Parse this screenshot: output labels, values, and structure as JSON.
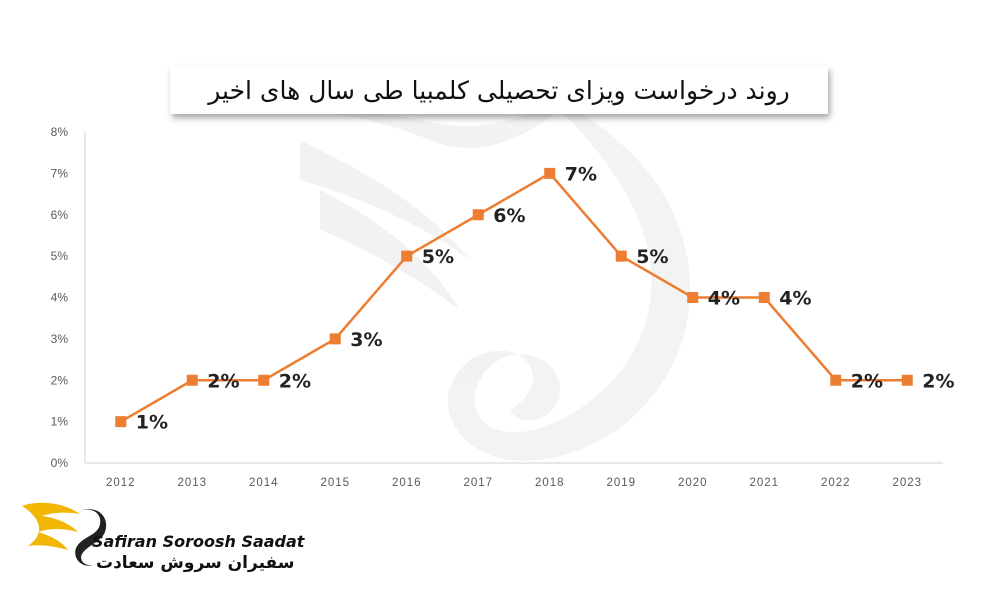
{
  "chart_data": {
    "type": "line",
    "title": "روند درخواست ویزای تحصیلی کلمبیا طی سال های اخیر",
    "categories": [
      "2012",
      "2013",
      "2014",
      "2015",
      "2016",
      "2017",
      "2018",
      "2019",
      "2020",
      "2021",
      "2022",
      "2023"
    ],
    "series": [
      {
        "values": [
          1,
          2,
          2,
          3,
          5,
          6,
          7,
          5,
          4,
          4,
          2,
          2
        ]
      }
    ],
    "data_labels": [
      "1%",
      "2%",
      "2%",
      "3%",
      "5%",
      "6%",
      "7%",
      "5%",
      "4%",
      "4%",
      "2%",
      "2%"
    ],
    "y_ticks": [
      "0%",
      "1%",
      "2%",
      "3%",
      "4%",
      "5%",
      "6%",
      "7%",
      "8%"
    ],
    "ylim": [
      0,
      8
    ],
    "grid": false,
    "line_color": "#ED7D31",
    "marker": "square"
  },
  "branding": {
    "name_en": "Safiran Soroosh Saadat",
    "name_fa": "سفیران سروش سعادت",
    "logo_icon": "wing-s-icon",
    "logo_color": "#F2B705"
  }
}
